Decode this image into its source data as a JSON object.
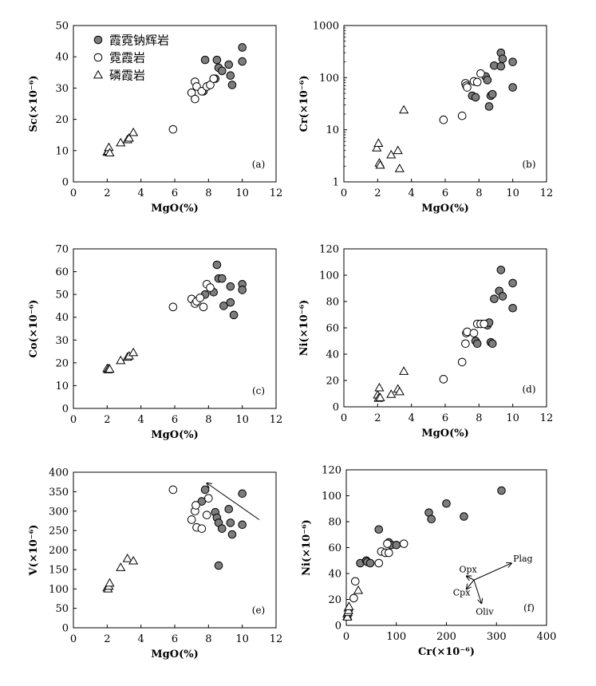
{
  "figure": {
    "legend": [
      {
        "label": "霞霓钠辉岩",
        "marker": "filled-circle"
      },
      {
        "label": "霓霞岩",
        "marker": "open-circle"
      },
      {
        "label": "磷霞岩",
        "marker": "open-triangle"
      }
    ],
    "colors": {
      "filled": "#7d7d7d",
      "stroke": "#000000",
      "open": "#ffffff"
    }
  },
  "chart_data": [
    {
      "type": "scatter",
      "tag": "(a)",
      "xlabel": "MgO(%)",
      "ylabel": "Sc(×10⁻⁶)",
      "xlim": [
        0,
        12
      ],
      "ylim": [
        0,
        50
      ],
      "yscale": "linear",
      "xticks": [
        0,
        2,
        4,
        6,
        8,
        10,
        12
      ],
      "yticks": [
        0,
        10,
        20,
        30,
        40,
        50
      ],
      "series": [
        {
          "name": "霞霓钠辉岩",
          "marker": "filled-circle",
          "x": [
            7.8,
            8.5,
            8.6,
            8.8,
            9.2,
            9.3,
            10.0,
            10.0,
            9.4,
            8.4,
            7.7
          ],
          "y": [
            39,
            39,
            36.5,
            35.5,
            37.5,
            34,
            43,
            38.5,
            31,
            33,
            29
          ]
        },
        {
          "name": "霓霞岩",
          "marker": "open-circle",
          "x": [
            5.9,
            7.0,
            7.2,
            7.2,
            7.3,
            7.6,
            7.9,
            8.1,
            8.3
          ],
          "y": [
            16.8,
            28.5,
            26.5,
            32,
            30.5,
            29,
            30.5,
            31,
            33
          ]
        },
        {
          "name": "磷霞岩",
          "marker": "open-triangle",
          "x": [
            2.0,
            2.05,
            2.1,
            2.15,
            2.8,
            3.2,
            3.3,
            3.55
          ],
          "y": [
            9.5,
            9.8,
            11,
            9.3,
            12.5,
            13.5,
            14,
            15.8
          ]
        }
      ]
    },
    {
      "type": "scatter",
      "tag": "(b)",
      "xlabel": "MgO(%)",
      "ylabel": "Cr(×10⁻⁶)",
      "xlim": [
        0,
        12
      ],
      "ylim": [
        1,
        1000
      ],
      "yscale": "log",
      "xticks": [
        0,
        2,
        4,
        6,
        8,
        10,
        12
      ],
      "yticks": [
        1,
        10,
        100,
        1000
      ],
      "series": [
        {
          "name": "霞霓钠辉岩",
          "marker": "filled-circle",
          "x": [
            7.6,
            7.8,
            8.4,
            8.5,
            8.6,
            8.7,
            8.8,
            8.9,
            9.3,
            9.4,
            9.3,
            10.0,
            10.0
          ],
          "y": [
            45,
            42,
            105,
            90,
            28,
            45,
            48,
            170,
            300,
            230,
            165,
            200,
            65
          ]
        },
        {
          "name": "霓霞岩",
          "marker": "open-circle",
          "x": [
            5.9,
            7.0,
            7.2,
            7.25,
            7.3,
            7.7,
            7.9,
            8.1
          ],
          "y": [
            15.5,
            18.5,
            78,
            70,
            65,
            85,
            82,
            120
          ]
        },
        {
          "name": "磷霞岩",
          "marker": "open-triangle",
          "x": [
            1.95,
            2.05,
            2.1,
            2.15,
            2.8,
            3.2,
            3.3,
            3.55
          ],
          "y": [
            4.5,
            5.5,
            2.3,
            2.1,
            3.3,
            4.0,
            1.8,
            24
          ]
        }
      ]
    },
    {
      "type": "scatter",
      "tag": "(c)",
      "xlabel": "MgO(%)",
      "ylabel": "Co(×10⁻⁶)",
      "xlim": [
        0,
        12
      ],
      "ylim": [
        0,
        70
      ],
      "yscale": "linear",
      "xticks": [
        0,
        2,
        4,
        6,
        8,
        10,
        12
      ],
      "yticks": [
        0,
        10,
        20,
        30,
        40,
        50,
        60,
        70
      ],
      "series": [
        {
          "name": "霞霓钠辉岩",
          "marker": "filled-circle",
          "x": [
            7.8,
            8.3,
            8.5,
            8.6,
            8.8,
            8.9,
            9.3,
            9.3,
            9.5,
            10.0,
            10.0
          ],
          "y": [
            50,
            51,
            63,
            57,
            57,
            45,
            53.5,
            46.5,
            41,
            54.5,
            52
          ]
        },
        {
          "name": "霓霞岩",
          "marker": "open-circle",
          "x": [
            5.9,
            7.0,
            7.2,
            7.3,
            7.5,
            7.7,
            7.9,
            8.1
          ],
          "y": [
            44.5,
            48,
            46,
            47,
            48.5,
            44.5,
            54.5,
            53
          ]
        },
        {
          "name": "磷霞岩",
          "marker": "open-triangle",
          "x": [
            2.0,
            2.05,
            2.1,
            2.15,
            2.8,
            3.2,
            3.3,
            3.55
          ],
          "y": [
            17.5,
            17,
            17.5,
            17.2,
            21,
            22.5,
            23,
            24.5
          ]
        }
      ]
    },
    {
      "type": "scatter",
      "tag": "(d)",
      "xlabel": "MgO(%)",
      "ylabel": "Ni(×10⁻⁶)",
      "xlim": [
        0,
        12
      ],
      "ylim": [
        0,
        120
      ],
      "yscale": "linear",
      "xticks": [
        0,
        2,
        4,
        6,
        8,
        10,
        12
      ],
      "yticks": [
        0,
        20,
        40,
        60,
        80,
        100,
        120
      ],
      "series": [
        {
          "name": "霞霓钠辉岩",
          "marker": "filled-circle",
          "x": [
            7.8,
            7.9,
            8.5,
            8.6,
            8.7,
            8.8,
            8.9,
            9.2,
            9.3,
            9.4,
            10.0,
            10.0
          ],
          "y": [
            50,
            48,
            62,
            64,
            49,
            48,
            82,
            88,
            104,
            84,
            94,
            75
          ]
        },
        {
          "name": "霓霞岩",
          "marker": "open-circle",
          "x": [
            5.9,
            7.0,
            7.2,
            7.25,
            7.3,
            7.7,
            7.9,
            8.1,
            8.3
          ],
          "y": [
            21,
            34,
            48,
            56,
            57,
            56,
            63,
            63,
            63
          ]
        },
        {
          "name": "磷霞岩",
          "marker": "open-triangle",
          "x": [
            2.0,
            2.05,
            2.1,
            2.15,
            2.8,
            3.2,
            3.3,
            3.55
          ],
          "y": [
            9,
            6.5,
            14.5,
            7,
            9.5,
            13.5,
            11.5,
            27
          ]
        }
      ]
    },
    {
      "type": "scatter",
      "tag": "(e)",
      "xlabel": "MgO(%)",
      "ylabel": "V(×10⁻⁶)",
      "xlim": [
        0,
        12
      ],
      "ylim": [
        0,
        400
      ],
      "yscale": "linear",
      "xticks": [
        0,
        2,
        4,
        6,
        8,
        10,
        12
      ],
      "yticks": [
        0,
        50,
        100,
        150,
        200,
        250,
        300,
        350,
        400
      ],
      "series": [
        {
          "name": "霞霓钠辉岩",
          "marker": "filled-circle",
          "x": [
            7.6,
            7.8,
            8.4,
            8.5,
            8.6,
            8.6,
            8.8,
            9.2,
            9.3,
            9.4,
            10.0,
            10.0
          ],
          "y": [
            325,
            355,
            297,
            283,
            270,
            160,
            255,
            305,
            270,
            240,
            345,
            265
          ]
        },
        {
          "name": "霓霞岩",
          "marker": "open-circle",
          "x": [
            5.9,
            7.0,
            7.2,
            7.25,
            7.3,
            7.6,
            7.9,
            8.0
          ],
          "y": [
            355,
            278,
            300,
            315,
            258,
            255,
            290,
            333
          ]
        },
        {
          "name": "磷霞岩",
          "marker": "open-triangle",
          "x": [
            2.0,
            2.05,
            2.1,
            2.15,
            2.8,
            3.2,
            3.55
          ],
          "y": [
            103,
            100,
            107,
            115,
            155,
            178,
            172
          ]
        }
      ],
      "annotations": [
        {
          "type": "arrow",
          "from": [
            11.0,
            278
          ],
          "to": [
            7.9,
            372
          ]
        }
      ]
    },
    {
      "type": "scatter",
      "tag": "(f)",
      "xlabel": "Cr(×10⁻⁶)",
      "ylabel": "Ni(×10⁻⁶)",
      "xlim": [
        0,
        400
      ],
      "ylim": [
        0,
        120
      ],
      "yscale": "linear",
      "xticks": [
        0,
        100,
        200,
        300,
        400
      ],
      "yticks": [
        0,
        20,
        40,
        60,
        80,
        100,
        120
      ],
      "series": [
        {
          "name": "霞霓钠辉岩",
          "marker": "filled-circle",
          "x": [
            28,
            40,
            42,
            48,
            65,
            85,
            90,
            100,
            165,
            170,
            200,
            235,
            310
          ],
          "y": [
            48,
            50,
            49,
            48,
            74,
            64,
            62,
            62,
            87,
            82,
            94,
            84,
            104
          ]
        },
        {
          "name": "霓霞岩",
          "marker": "open-circle",
          "x": [
            15,
            18,
            65,
            70,
            78,
            82,
            85,
            115
          ],
          "y": [
            21,
            34,
            48,
            57,
            56,
            63,
            56,
            63
          ]
        },
        {
          "name": "磷霞岩",
          "marker": "open-triangle",
          "x": [
            1.8,
            2.1,
            2.3,
            3.3,
            4.0,
            4.5,
            5.5,
            24
          ],
          "y": [
            9,
            7,
            6.5,
            10,
            13.5,
            11.5,
            14.5,
            27
          ]
        }
      ],
      "vectors": {
        "origin": [
          255,
          35
        ],
        "items": [
          {
            "label": "Plag",
            "to": [
              330,
              48
            ]
          },
          {
            "label": "Opx",
            "to": [
              240,
              38
            ]
          },
          {
            "label": "Cpx",
            "to": [
              240,
              28
            ]
          },
          {
            "label": "Oliv",
            "to": [
              270,
              17
            ]
          }
        ]
      }
    }
  ]
}
